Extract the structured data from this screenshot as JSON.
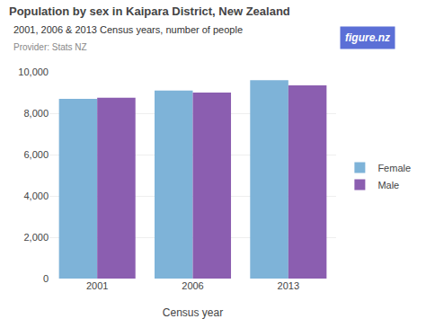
{
  "chart_data": {
    "type": "bar",
    "title": "Population by sex in Kaipara District, New Zealand",
    "subtitle": "2001, 2006 & 2013 Census years, number of people",
    "annotations": [
      {
        "text": "Provider: Stats NZ"
      },
      {
        "text": "figure.nz",
        "color": "#5B6FD6"
      }
    ],
    "xlabel": "Census year",
    "categories": [
      "2001",
      "2006",
      "2013"
    ],
    "series": [
      {
        "name": "Female",
        "color": "#7EB3D8",
        "values": [
          8700,
          9100,
          9600
        ]
      },
      {
        "name": "Male",
        "color": "#8B5EB0",
        "values": [
          8750,
          9000,
          9350
        ]
      }
    ],
    "ylim": [
      0,
      10000
    ],
    "yticks": [
      0,
      {
        "value": 2000,
        "label": "2,000"
      },
      {
        "value": 4000,
        "label": "4,000"
      },
      {
        "value": 6000,
        "label": "6,000"
      },
      {
        "value": 8000,
        "label": "8,000"
      },
      {
        "value": 10000,
        "label": "10,000"
      }
    ],
    "grid": true,
    "legend": "right"
  }
}
